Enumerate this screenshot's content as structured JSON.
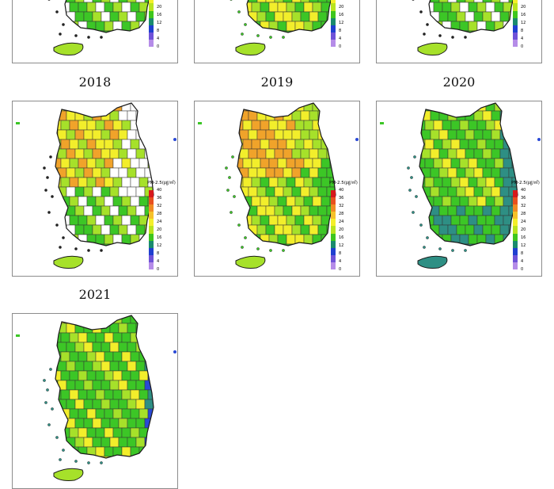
{
  "panels": [
    {
      "year": ""
    },
    {
      "year": ""
    },
    {
      "year": ""
    },
    {
      "year": "2018",
      "scheme": "mixed"
    },
    {
      "year": "2019",
      "scheme": "warm"
    },
    {
      "year": "2020",
      "scheme": "clean"
    },
    {
      "year": "2021",
      "scheme": "clean2"
    }
  ],
  "legend": {
    "title": "PM-2.5(㎍/㎥)",
    "ticks": [
      "40",
      "36",
      "32",
      "28",
      "24",
      "20",
      "16",
      "12",
      "8",
      "4",
      "0"
    ],
    "colors": [
      "#d7191c",
      "#e8501f",
      "#f08a24",
      "#f6c12a",
      "#f4ef2a",
      "#b9e41e",
      "#3ec61d",
      "#1a8a6e",
      "#1f3fd0",
      "#6f52d8",
      "#b58ce8"
    ]
  },
  "map_colors": {
    "outline": "#1a1a1a",
    "orange": "#f0a32a",
    "yellow": "#f2ee2b",
    "lime": "#a6e12a",
    "green": "#3cc626",
    "teal": "#2e8f84",
    "blue": "#2a49d6",
    "white": "#ffffff"
  }
}
